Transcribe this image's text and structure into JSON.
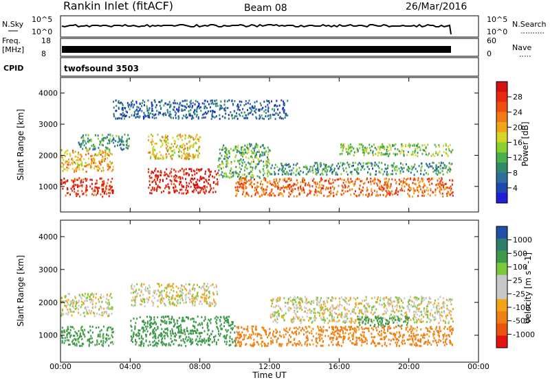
{
  "header": {
    "station": "Rankin Inlet (fitACF)",
    "beam": "Beam 08",
    "date": "26/Mar/2016"
  },
  "small_panels": {
    "nsky_label": "N.Sky",
    "nsearch_label": "N.Search",
    "noise_ticks": [
      "10^5",
      "10^0"
    ],
    "freq_label_1": "Freq.",
    "freq_label_2": "[MHz]",
    "freq_ticks": [
      "18",
      "8"
    ],
    "nave_label": "Nave",
    "nave_ticks": [
      "60",
      "0"
    ],
    "cpid_label": "CPID",
    "cpid_value": "twofsound 3503"
  },
  "colors": {
    "power": [
      "#1f1fd9",
      "#1c48b0",
      "#2e6e9c",
      "#2f8a6a",
      "#4caf4f",
      "#8ad12f",
      "#d6d62a",
      "#f2a51a",
      "#f07a14",
      "#ee4e10",
      "#e82a0f",
      "#d41010"
    ],
    "velocity": [
      "#e3140f",
      "#e8550f",
      "#f07f14",
      "#f2a51a",
      "#c8c8c8",
      "#c8c8c8",
      "#7cc83c",
      "#3e9a4a",
      "#2c7d6c",
      "#1f4fa6"
    ]
  },
  "chart_data": [
    {
      "type": "heatmap",
      "title": "Power",
      "ylabel": "Slant Range [km]",
      "colorbar_label": "Power [dB]",
      "colorbar_ticks": [
        "4",
        "8",
        "12",
        "16",
        "20",
        "24",
        "28"
      ],
      "colorbar_range": [
        0,
        32
      ],
      "x_range_hours": [
        0,
        24
      ],
      "y_range_km": [
        180,
        4500
      ],
      "y_ticks": [
        "1000",
        "2000",
        "3000",
        "4000"
      ],
      "x_ticks": [
        "00:00",
        "04:00",
        "08:00",
        "12:00",
        "16:00",
        "20:00",
        "00:00"
      ],
      "xlabel": "",
      "data_end_hour": 22.5,
      "features": [
        {
          "start_hour": 0.0,
          "end_hour": 3.0,
          "range_km": [
            700,
            1300
          ],
          "power_db": 28
        },
        {
          "start_hour": 0.0,
          "end_hour": 3.0,
          "range_km": [
            1500,
            2200
          ],
          "power_db": 20
        },
        {
          "start_hour": 1.0,
          "end_hour": 4.0,
          "range_km": [
            2200,
            2700
          ],
          "power_db": 10
        },
        {
          "start_hour": 5.0,
          "end_hour": 9.0,
          "range_km": [
            800,
            1600
          ],
          "power_db": 30
        },
        {
          "start_hour": 5.0,
          "end_hour": 8.0,
          "range_km": [
            1900,
            2700
          ],
          "power_db": 18
        },
        {
          "start_hour": 9.0,
          "end_hour": 12.0,
          "range_km": [
            1300,
            2400
          ],
          "power_db": 12
        },
        {
          "start_hour": 10.0,
          "end_hour": 22.5,
          "range_km": [
            700,
            1300
          ],
          "power_db": 24
        },
        {
          "start_hour": 12.0,
          "end_hour": 22.5,
          "range_km": [
            1400,
            1800
          ],
          "power_db": 10
        },
        {
          "start_hour": 16.0,
          "end_hour": 22.5,
          "range_km": [
            2000,
            2400
          ],
          "power_db": 14
        },
        {
          "start_hour": 3.0,
          "end_hour": 13.0,
          "range_km": [
            3200,
            3800
          ],
          "power_db": 6
        }
      ]
    },
    {
      "type": "heatmap",
      "title": "Velocity",
      "ylabel": "Slant Range [km]",
      "xlabel": "Time UT",
      "colorbar_label": "Velocity [m s^-1]",
      "colorbar_ticks": [
        "1000",
        "500",
        "100",
        "25",
        "-25",
        "-100",
        "-500",
        "-1000"
      ],
      "x_range_hours": [
        0,
        24
      ],
      "y_range_km": [
        180,
        4500
      ],
      "y_ticks": [
        "1000",
        "2000",
        "3000",
        "4000"
      ],
      "x_ticks": [
        "00:00",
        "04:00",
        "08:00",
        "12:00",
        "16:00",
        "20:00",
        "00:00"
      ],
      "data_end_hour": 22.5,
      "features": [
        {
          "start_hour": 0.0,
          "end_hour": 3.0,
          "range_km": [
            700,
            1300
          ],
          "velocity_ms": 150
        },
        {
          "start_hour": 0.0,
          "end_hour": 3.0,
          "range_km": [
            1600,
            2300
          ],
          "velocity_ms": 0
        },
        {
          "start_hour": 4.0,
          "end_hour": 10.0,
          "range_km": [
            700,
            1600
          ],
          "velocity_ms": 300
        },
        {
          "start_hour": 4.0,
          "end_hour": 9.0,
          "range_km": [
            1900,
            2600
          ],
          "velocity_ms": 0
        },
        {
          "start_hour": 10.0,
          "end_hour": 22.5,
          "range_km": [
            700,
            1300
          ],
          "velocity_ms": -150
        },
        {
          "start_hour": 12.0,
          "end_hour": 22.5,
          "range_km": [
            1400,
            2200
          ],
          "velocity_ms": 0
        },
        {
          "start_hour": 17.0,
          "end_hour": 20.0,
          "range_km": [
            1300,
            1600
          ],
          "velocity_ms": 200
        }
      ]
    }
  ]
}
